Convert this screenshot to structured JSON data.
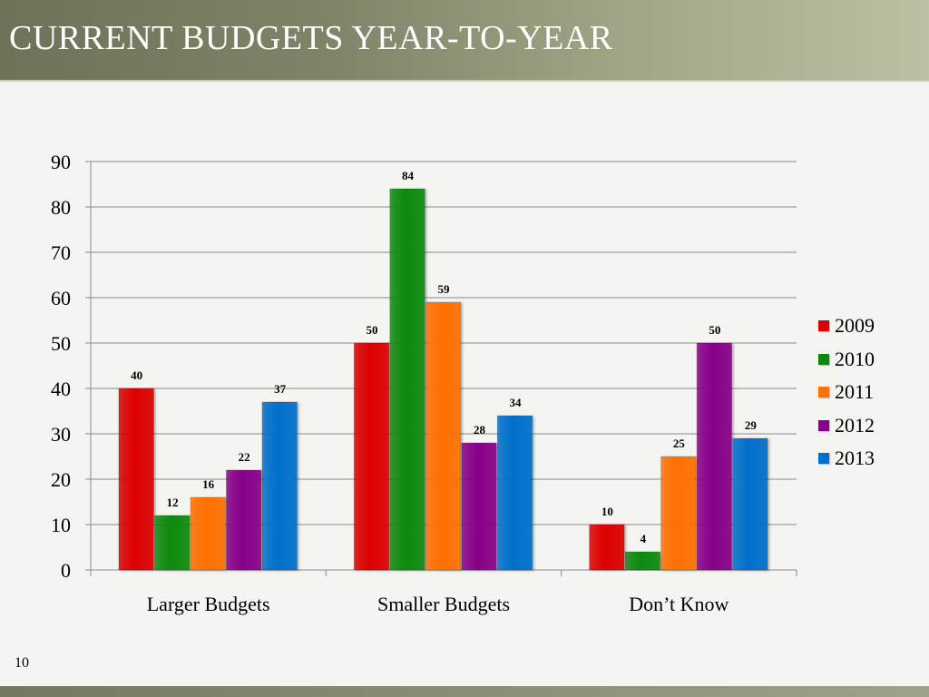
{
  "slide": {
    "title": "CURRENT BUDGETS YEAR-TO-YEAR",
    "page_number": "10"
  },
  "chart_data": {
    "type": "bar",
    "title": "",
    "xlabel": "",
    "ylabel": "",
    "ylim": [
      0,
      90
    ],
    "yticks": [
      0,
      10,
      20,
      30,
      40,
      50,
      60,
      70,
      80,
      90
    ],
    "grid": true,
    "legend_position": "right",
    "categories": [
      "Larger Budgets",
      "Smaller Budgets",
      "Don’t Know"
    ],
    "series": [
      {
        "name": "2009",
        "color": "#dd0000",
        "values": [
          40,
          50,
          10
        ]
      },
      {
        "name": "2010",
        "color": "#0a8a0a",
        "values": [
          12,
          84,
          4
        ]
      },
      {
        "name": "2011",
        "color": "#ff7000",
        "values": [
          16,
          59,
          25
        ]
      },
      {
        "name": "2012",
        "color": "#880088",
        "values": [
          22,
          28,
          50
        ]
      },
      {
        "name": "2013",
        "color": "#0070cc",
        "values": [
          37,
          34,
          29
        ]
      }
    ]
  }
}
